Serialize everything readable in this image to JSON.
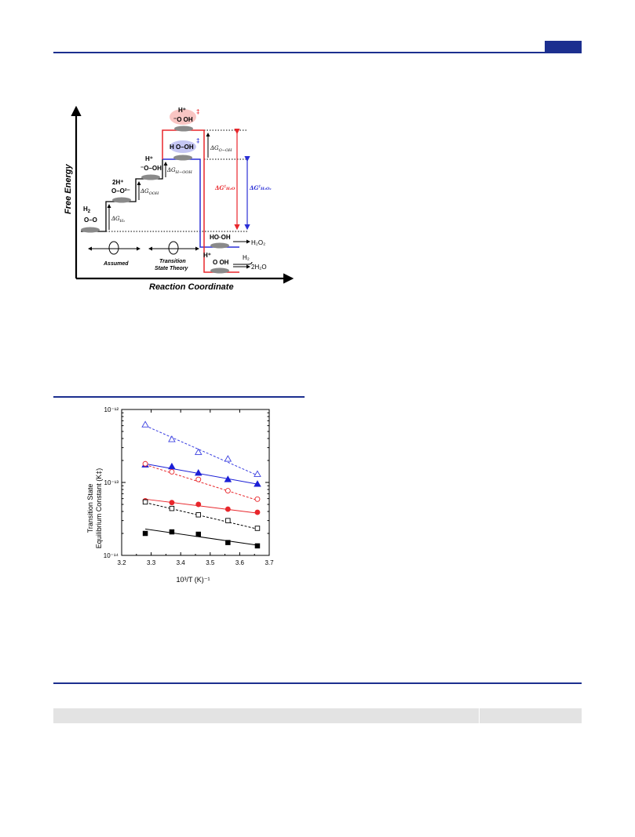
{
  "figure1": {
    "y_axis_label": "Free Energy",
    "x_axis_label": "Reaction Coordinate",
    "states": {
      "h2": "H",
      "h2_sub": "2",
      "o_o": "O–O",
      "two_h_plus": "2H⁺",
      "o_o_2minus": "O–O²⁻",
      "h_plus_1": "H⁺",
      "o_oh_1": "⁻O–OH",
      "ts_blue": "H  O–OH",
      "ts_red_h": "H⁺",
      "ts_red": "⁻O  OH",
      "ho_oh": "HO·OH",
      "h2o2_product": "H₂O₂",
      "h_plus_final": "H⁺",
      "o_oh_final": "O  OH",
      "h2_reagent": "H₂",
      "two_h2o_product": "2H₂O",
      "ts_mark": "‡"
    },
    "energy_labels": {
      "dg_h2": "ΔG",
      "dg_h2_sub": "H₂",
      "dg_ooh": "ΔG",
      "dg_ooh_sub": "OOH",
      "dg_h_ooh": "ΔG",
      "dg_h_ooh_sub": "H−OOH",
      "dg_o_oh": "ΔG",
      "dg_o_oh_sub": "O−OH",
      "dg_h2o": "ΔG",
      "dg_h2o_sup": "‡",
      "dg_h2o_sub": "H₂O",
      "dg_h2o2": "ΔG",
      "dg_h2o2_sup": "‡",
      "dg_h2o2_sub": "H₂O₂"
    },
    "legend": {
      "assumed": "Assumed",
      "tst_line1": "Transition",
      "tst_line2": "State Theory"
    },
    "colors": {
      "red": "#e8262b",
      "blue": "#2a2fd6",
      "red_glow": "#f7b7b4",
      "blue_glow": "#b7b8f0"
    }
  },
  "figure2": {
    "ylabel_line1": "Transition State",
    "ylabel_line2": "Equilibrium Constant (K‡)",
    "xlabel": "10³/T (K)⁻¹",
    "y_tick_labels": [
      "10⁻¹²",
      "10⁻¹³",
      "10⁻¹⁴"
    ],
    "x_tick_labels": [
      "3.2",
      "3.3",
      "3.4",
      "3.5",
      "3.6",
      "3.7"
    ]
  },
  "chart_data": {
    "type": "scatter",
    "xlabel": "10³/T (K)⁻¹",
    "ylabel": "Transition State Equilibrium Constant (K‡)",
    "xlim": [
      3.2,
      3.7
    ],
    "ylim": [
      1e-14,
      1e-12
    ],
    "y_scale": "log",
    "grid": false,
    "x": [
      3.28,
      3.37,
      3.46,
      3.56,
      3.66
    ],
    "series": [
      {
        "marker": "triangle",
        "filled": false,
        "color": "#3a3fe0",
        "line": "dashed",
        "values": [
          6.2e-13,
          3.9e-13,
          2.6e-13,
          2.1e-13,
          1.3e-13
        ]
      },
      {
        "marker": "triangle",
        "filled": true,
        "color": "#1b1fd6",
        "line": "solid",
        "values": [
          1.75e-13,
          1.65e-13,
          1.35e-13,
          1.1e-13,
          9.5e-14
        ]
      },
      {
        "marker": "circle",
        "filled": false,
        "color": "#e8262b",
        "line": "dashed",
        "values": [
          1.8e-13,
          1.4e-13,
          1.1e-13,
          7.7e-14,
          5.9e-14
        ]
      },
      {
        "marker": "circle",
        "filled": true,
        "color": "#e8262b",
        "line": "solid",
        "values": [
          5.6e-14,
          5.3e-14,
          5e-14,
          4.3e-14,
          3.9e-14
        ]
      },
      {
        "marker": "square",
        "filled": false,
        "color": "#000000",
        "line": "dashed",
        "values": [
          5.4e-14,
          4.4e-14,
          3.6e-14,
          3e-14,
          2.35e-14
        ]
      },
      {
        "marker": "square",
        "filled": true,
        "color": "#000000",
        "line": "solid",
        "values": [
          2e-14,
          2.1e-14,
          1.95e-14,
          1.5e-14,
          1.35e-14
        ]
      }
    ],
    "fit_lines": [
      {
        "x": [
          3.28,
          3.66
        ],
        "y": [
          6e-13,
          1.25e-13
        ]
      },
      {
        "x": [
          3.28,
          3.66
        ],
        "y": [
          1.8e-13,
          9.5e-14
        ]
      },
      {
        "x": [
          3.28,
          3.66
        ],
        "y": [
          1.75e-13,
          5.7e-14
        ]
      },
      {
        "x": [
          3.28,
          3.66
        ],
        "y": [
          5.9e-14,
          3.8e-14
        ]
      },
      {
        "x": [
          3.28,
          3.66
        ],
        "y": [
          5.3e-14,
          2.3e-14
        ]
      },
      {
        "x": [
          3.28,
          3.66
        ],
        "y": [
          2.3e-14,
          1.38e-14
        ]
      }
    ]
  }
}
